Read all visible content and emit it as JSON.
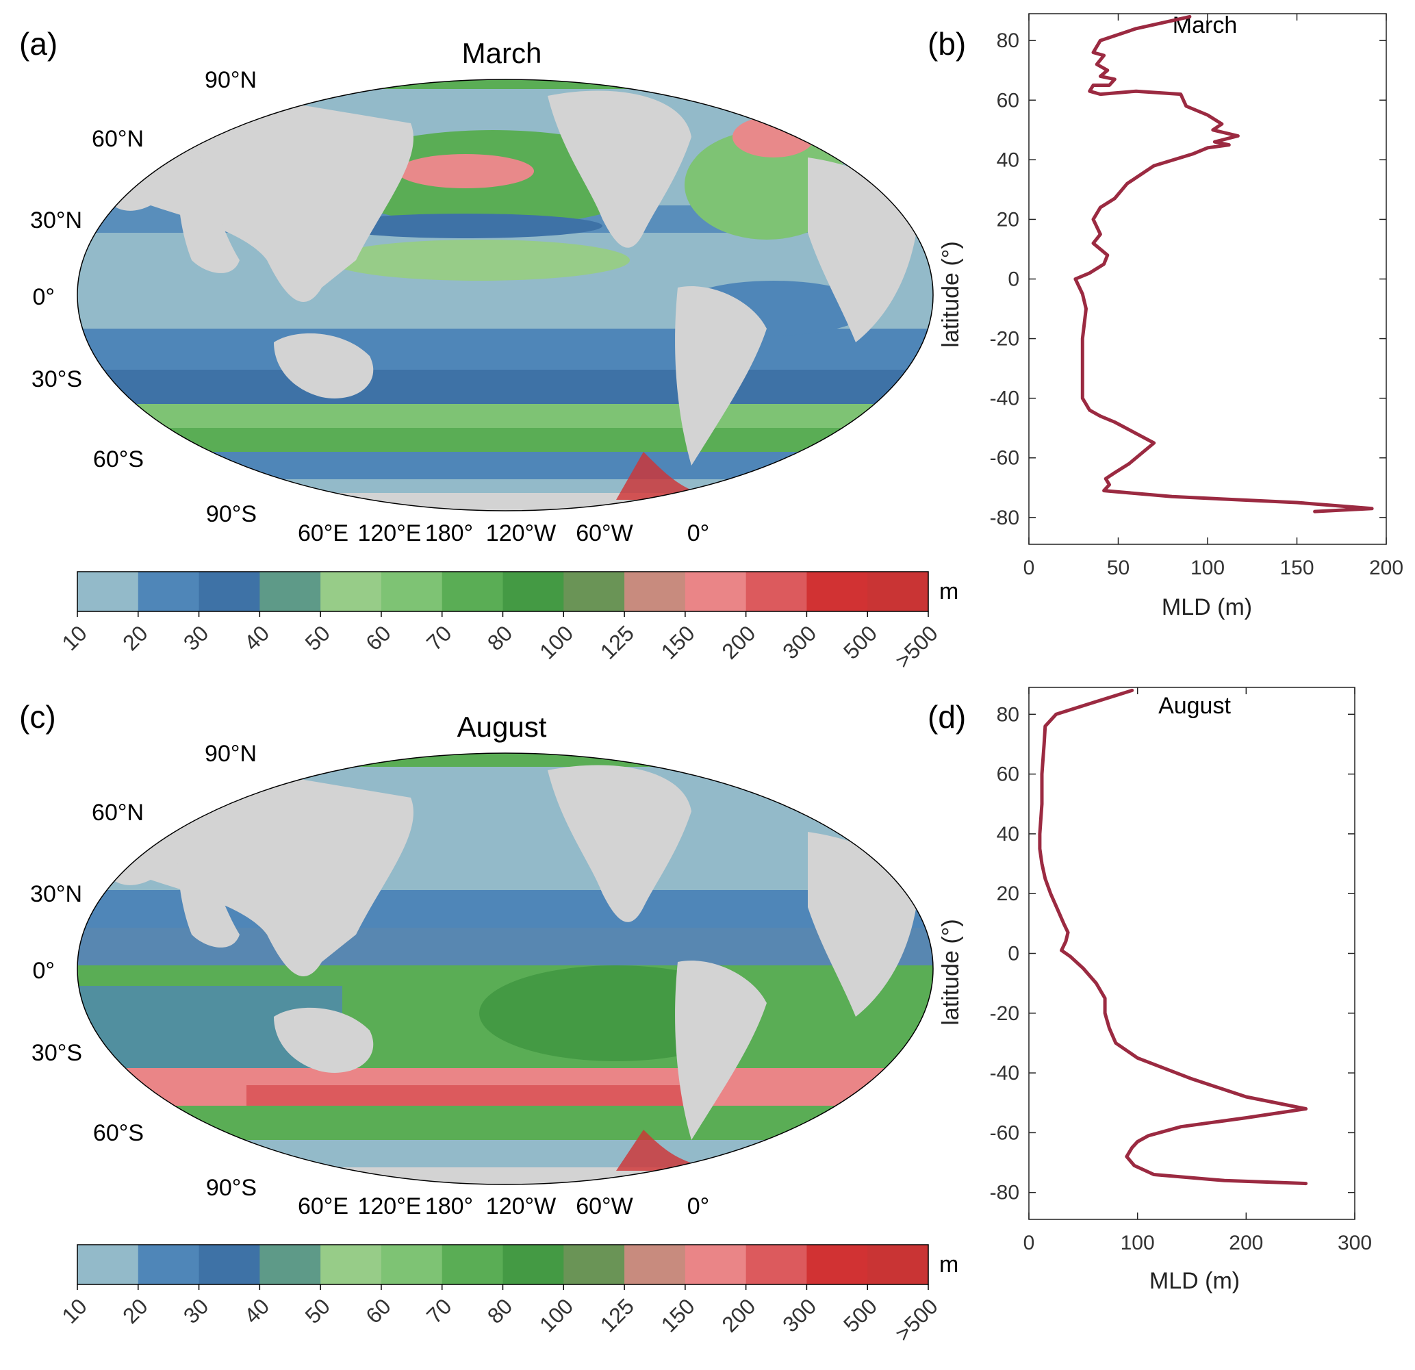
{
  "colorbar": {
    "unit": "m",
    "colors": [
      "#93bac9",
      "#4f86b8",
      "#3e72a6",
      "#5e9a88",
      "#97cc88",
      "#7ec374",
      "#5aad55",
      "#449a44",
      "#6a9456",
      "#c88b7e",
      "#ea8587",
      "#dc5a5d",
      "#d13233",
      "#c93434"
    ],
    "labels": [
      "10",
      "20",
      "30",
      "40",
      "50",
      "60",
      "70",
      "80",
      "100",
      "125",
      "150",
      "200",
      "300",
      "500",
      ">500"
    ]
  },
  "land_color": "#d3d3d3",
  "line_color": "#9b2a41",
  "maps": [
    {
      "panel_label": "(a)",
      "title": "March",
      "lat_labels": [
        "90°N",
        "60°N",
        "30°N",
        "0°",
        "30°S",
        "60°S",
        "90°S"
      ],
      "lon_labels": [
        "60°E",
        "120°E",
        "180°",
        "120°W",
        "60°W",
        "0°"
      ]
    },
    {
      "panel_label": "(c)",
      "title": "August",
      "lat_labels": [
        "90°N",
        "60°N",
        "30°N",
        "0°",
        "30°S",
        "60°S",
        "90°S"
      ],
      "lon_labels": [
        "60°E",
        "120°E",
        "180°",
        "120°W",
        "60°W",
        "0°"
      ]
    }
  ],
  "chart_data": [
    {
      "panel_label": "(b)",
      "type": "line",
      "title": "March",
      "xlabel": "MLD (m)",
      "ylabel": "latitude (°)",
      "xlim": [
        0,
        200
      ],
      "ylim": [
        -89,
        89
      ],
      "xticks": [
        0,
        50,
        100,
        150,
        200
      ],
      "yticks": [
        80,
        60,
        40,
        20,
        0,
        -20,
        -40,
        -60,
        -80
      ],
      "series": [
        {
          "x": [
            90,
            60,
            40,
            36,
            42,
            38,
            44,
            40,
            48,
            45,
            36,
            34,
            40,
            60,
            85,
            88,
            100,
            108,
            103,
            117,
            104,
            112,
            100,
            92,
            70,
            55,
            48,
            40,
            36,
            40,
            36,
            44,
            42,
            34,
            26,
            30,
            32,
            30,
            30,
            30,
            30,
            32,
            34,
            40,
            48,
            70,
            56,
            48,
            43,
            45,
            42,
            80,
            150,
            192,
            160
          ],
          "y": [
            88,
            84,
            80,
            76,
            75,
            72,
            70,
            68,
            67,
            65,
            65,
            63,
            62,
            63,
            62,
            58,
            55,
            52,
            50,
            48,
            46,
            45,
            44,
            42,
            38,
            32,
            27,
            24,
            20,
            15,
            12,
            8,
            5,
            2,
            0,
            -5,
            -10,
            -20,
            -30,
            -36,
            -40,
            -42,
            -44,
            -46,
            -48,
            -55,
            -62,
            -65,
            -67,
            -69,
            -71,
            -73,
            -75,
            -77,
            -78
          ]
        }
      ]
    },
    {
      "panel_label": "(d)",
      "type": "line",
      "title": "August",
      "xlabel": "MLD (m)",
      "ylabel": "latitude (°)",
      "xlim": [
        0,
        300
      ],
      "ylim": [
        -89,
        89
      ],
      "xticks": [
        0,
        100,
        200,
        300
      ],
      "yticks": [
        80,
        60,
        40,
        20,
        0,
        -20,
        -40,
        -60,
        -80
      ],
      "series": [
        {
          "x": [
            95,
            60,
            25,
            15,
            14,
            12,
            12,
            10,
            10,
            12,
            15,
            20,
            26,
            32,
            36,
            34,
            30,
            38,
            50,
            62,
            70,
            70,
            74,
            80,
            100,
            150,
            200,
            255,
            200,
            140,
            110,
            100,
            95,
            90,
            97,
            115,
            180,
            255
          ],
          "y": [
            88,
            84,
            80,
            76,
            70,
            60,
            50,
            40,
            35,
            30,
            25,
            20,
            15,
            10,
            7,
            4,
            1,
            -1,
            -5,
            -10,
            -15,
            -20,
            -25,
            -30,
            -35,
            -42,
            -48,
            -52,
            -55,
            -58,
            -61,
            -63,
            -65,
            -68,
            -71,
            -74,
            -76,
            -77
          ]
        }
      ]
    }
  ]
}
